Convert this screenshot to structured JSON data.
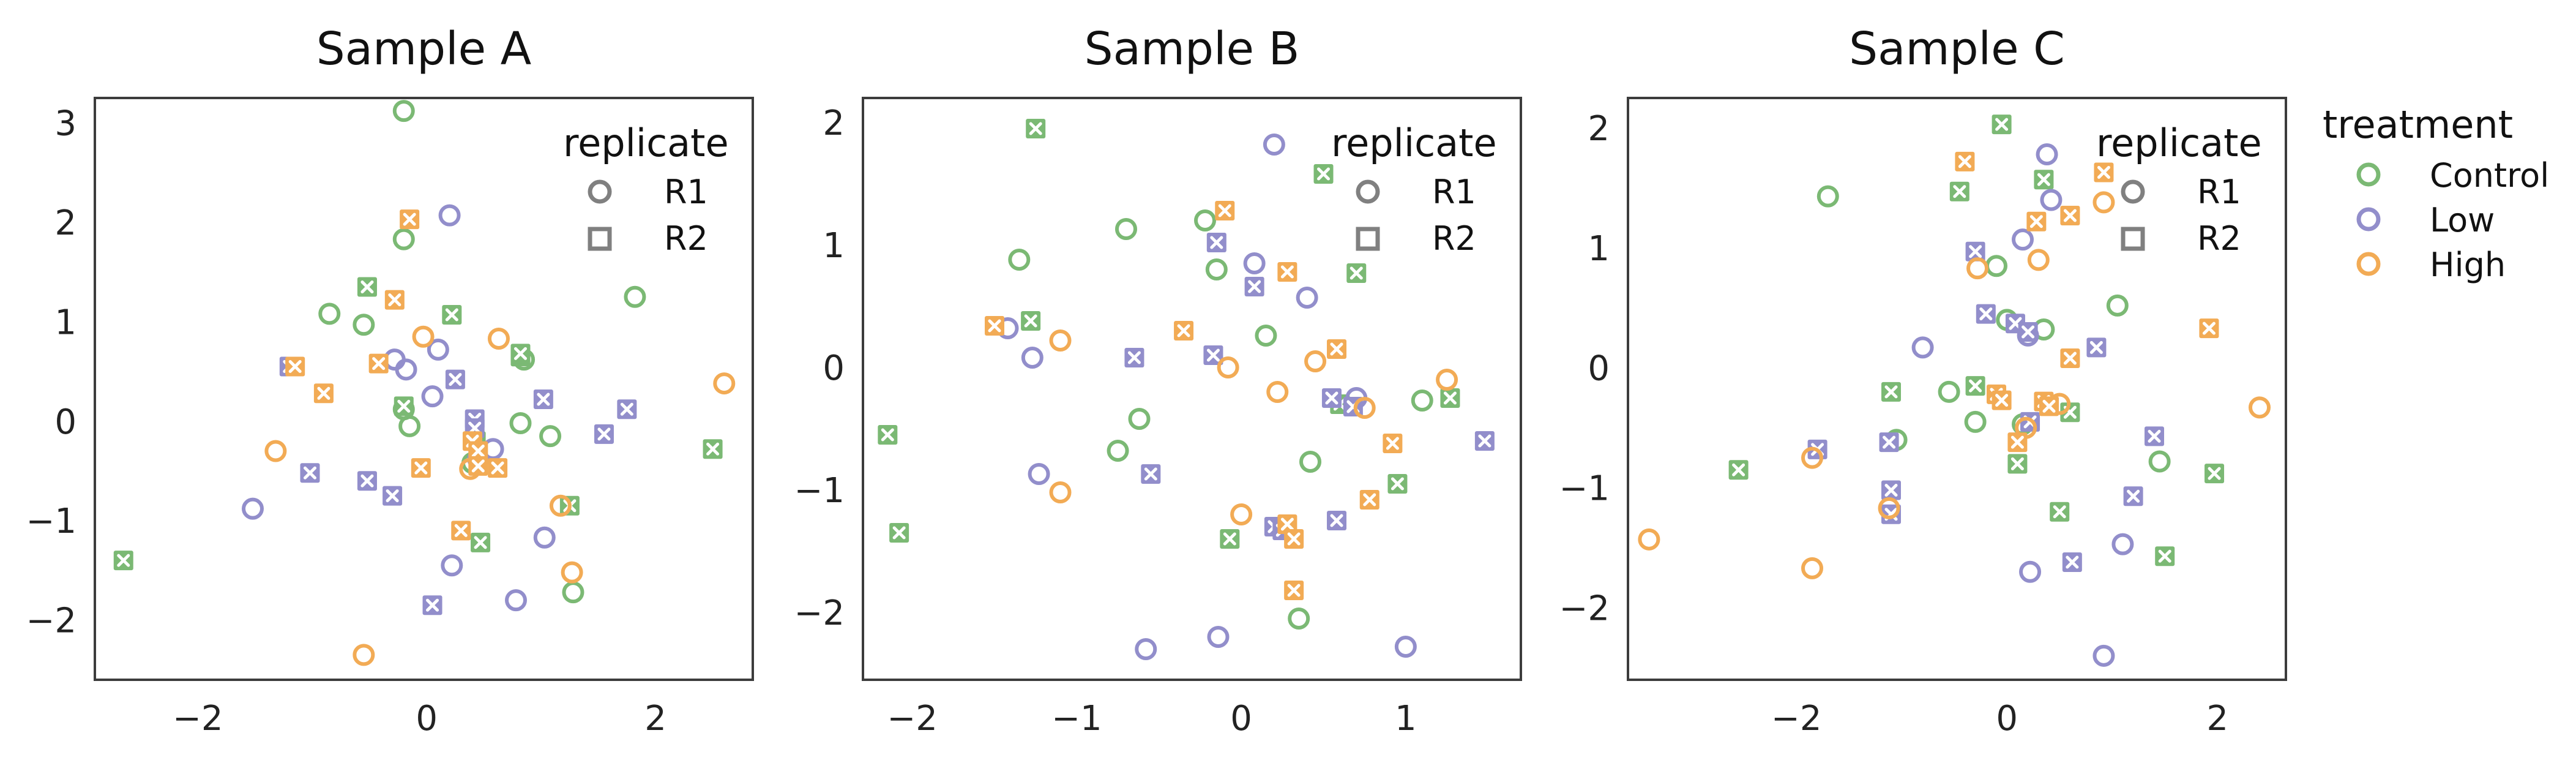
{
  "chart_data": {
    "type": "scatter",
    "colors": {
      "Control": "#7bb974",
      "Low": "#928ecb",
      "High": "#f2ab55",
      "frame": "#3c3c3c",
      "legend_marker": "#808080"
    },
    "legends": {
      "replicate": {
        "title": "replicate",
        "placement": "upper-right inside each panel",
        "entries": [
          {
            "label": "R1",
            "marker": "circle"
          },
          {
            "label": "R2",
            "marker": "square"
          }
        ]
      },
      "treatment": {
        "title": "treatment",
        "placement": "right of figure",
        "marker": "circle",
        "entries": [
          "Control",
          "Low",
          "High"
        ]
      }
    },
    "marker_encoding": {
      "circle": "open circle",
      "x_filled": "filled square with white x (R2)"
    },
    "panels": [
      {
        "title": "Sample A",
        "xlim": [
          -2.9,
          2.85
        ],
        "ylim": [
          -2.6,
          3.25
        ],
        "xticks": [
          -2,
          0,
          2
        ],
        "yticks": [
          -2,
          -1,
          0,
          1,
          2,
          3
        ],
        "xtick_labels": [
          "−2",
          "0",
          "2"
        ],
        "ytick_labels": [
          "−2",
          "−1",
          "0",
          "1",
          "2",
          "3"
        ],
        "grid": false,
        "series": [
          {
            "name": "Control",
            "marker": "circle",
            "points": [
              [
                -0.2,
                3.12
              ],
              [
                -0.2,
                1.83
              ],
              [
                -0.85,
                1.08
              ],
              [
                -0.55,
                0.97
              ],
              [
                -0.2,
                0.12
              ],
              [
                -0.15,
                -0.05
              ],
              [
                0.4,
                -0.42
              ],
              [
                0.82,
                -0.02
              ],
              [
                1.08,
                -0.15
              ],
              [
                1.28,
                -1.72
              ],
              [
                1.82,
                1.25
              ],
              [
                0.85,
                0.62
              ]
            ]
          },
          {
            "name": "Control",
            "marker": "x_filled",
            "points": [
              [
                -2.65,
                -1.4
              ],
              [
                -0.52,
                1.35
              ],
              [
                -0.2,
                0.15
              ],
              [
                0.22,
                1.07
              ],
              [
                0.82,
                0.65
              ],
              [
                0.82,
                0.68
              ],
              [
                0.43,
                -0.2
              ],
              [
                0.47,
                -1.22
              ],
              [
                1.25,
                -0.85
              ],
              [
                2.5,
                -0.28
              ]
            ]
          },
          {
            "name": "Low",
            "marker": "circle",
            "points": [
              [
                -1.52,
                -0.88
              ],
              [
                -0.28,
                0.62
              ],
              [
                -0.18,
                0.52
              ],
              [
                0.05,
                0.25
              ],
              [
                0.1,
                0.72
              ],
              [
                0.2,
                2.07
              ],
              [
                0.22,
                -1.45
              ],
              [
                0.45,
                -0.38
              ],
              [
                0.58,
                -0.28
              ],
              [
                0.78,
                -1.8
              ],
              [
                1.03,
                -1.17
              ]
            ]
          },
          {
            "name": "Low",
            "marker": "x_filled",
            "points": [
              [
                -1.2,
                0.55
              ],
              [
                -1.02,
                -0.52
              ],
              [
                -0.52,
                -0.6
              ],
              [
                -0.3,
                -0.75
              ],
              [
                0.05,
                -1.85
              ],
              [
                0.25,
                0.42
              ],
              [
                0.42,
                0.02
              ],
              [
                0.42,
                -0.07
              ],
              [
                1.02,
                0.22
              ],
              [
                1.55,
                -0.13
              ],
              [
                1.75,
                0.12
              ]
            ]
          },
          {
            "name": "High",
            "marker": "circle",
            "points": [
              [
                -1.32,
                -0.3
              ],
              [
                -0.55,
                -2.35
              ],
              [
                -0.03,
                0.85
              ],
              [
                0.38,
                -0.48
              ],
              [
                0.63,
                0.83
              ],
              [
                1.17,
                -0.85
              ],
              [
                1.27,
                -1.52
              ],
              [
                2.6,
                0.38
              ]
            ]
          },
          {
            "name": "High",
            "marker": "x_filled",
            "points": [
              [
                -1.15,
                0.55
              ],
              [
                -0.9,
                0.28
              ],
              [
                -0.42,
                0.58
              ],
              [
                -0.28,
                1.22
              ],
              [
                -0.15,
                2.03
              ],
              [
                -0.05,
                -0.47
              ],
              [
                0.3,
                -1.1
              ],
              [
                0.4,
                -0.2
              ],
              [
                0.45,
                -0.3
              ],
              [
                0.45,
                -0.45
              ],
              [
                0.62,
                -0.47
              ]
            ]
          }
        ]
      },
      {
        "title": "Sample B",
        "xlim": [
          -2.3,
          1.7
        ],
        "ylim": [
          -2.55,
          2.2
        ],
        "xticks": [
          -2,
          -1,
          0,
          1
        ],
        "yticks": [
          -2,
          -1,
          0,
          1,
          2
        ],
        "xtick_labels": [
          "−2",
          "−1",
          "0",
          "1"
        ],
        "ytick_labels": [
          "−2",
          "−1",
          "0",
          "1",
          "2"
        ],
        "grid": false,
        "series": [
          {
            "name": "Control",
            "marker": "circle",
            "points": [
              [
                -1.35,
                0.88
              ],
              [
                -0.7,
                1.13
              ],
              [
                -0.62,
                -0.42
              ],
              [
                -0.75,
                -0.68
              ],
              [
                -0.22,
                1.2
              ],
              [
                -0.15,
                0.8
              ],
              [
                0.15,
                0.26
              ],
              [
                0.35,
                -2.05
              ],
              [
                0.42,
                -0.77
              ],
              [
                1.1,
                -0.27
              ]
            ]
          },
          {
            "name": "Control",
            "marker": "x_filled",
            "points": [
              [
                -2.15,
                -0.55
              ],
              [
                -2.08,
                -1.35
              ],
              [
                -1.25,
                1.95
              ],
              [
                -1.28,
                0.38
              ],
              [
                -0.07,
                -1.4
              ],
              [
                0.5,
                1.58
              ],
              [
                0.7,
                0.77
              ],
              [
                0.6,
                -0.3
              ],
              [
                0.95,
                -0.95
              ],
              [
                1.27,
                -0.25
              ]
            ]
          },
          {
            "name": "Low",
            "marker": "circle",
            "points": [
              [
                -1.42,
                0.32
              ],
              [
                -1.27,
                0.08
              ],
              [
                -1.23,
                -0.87
              ],
              [
                -0.58,
                -2.3
              ],
              [
                -0.14,
                -2.2
              ],
              [
                0.08,
                0.85
              ],
              [
                0.2,
                1.82
              ],
              [
                0.4,
                0.57
              ],
              [
                0.7,
                -0.25
              ],
              [
                1.0,
                -2.28
              ]
            ]
          },
          {
            "name": "Low",
            "marker": "x_filled",
            "points": [
              [
                -0.65,
                0.08
              ],
              [
                -0.55,
                -0.87
              ],
              [
                -0.17,
                0.1
              ],
              [
                -0.15,
                1.02
              ],
              [
                0.08,
                0.66
              ],
              [
                0.2,
                -1.3
              ],
              [
                0.25,
                -1.33
              ],
              [
                0.55,
                -0.25
              ],
              [
                0.58,
                -1.25
              ],
              [
                0.68,
                -0.32
              ],
              [
                1.48,
                -0.6
              ]
            ]
          },
          {
            "name": "High",
            "marker": "circle",
            "points": [
              [
                -1.1,
                0.22
              ],
              [
                -1.1,
                -1.02
              ],
              [
                -0.08,
                0.0
              ],
              [
                0.0,
                -1.2
              ],
              [
                0.22,
                -0.2
              ],
              [
                0.45,
                0.05
              ],
              [
                1.25,
                -0.1
              ],
              [
                0.75,
                -0.33
              ]
            ]
          },
          {
            "name": "High",
            "marker": "x_filled",
            "points": [
              [
                -1.5,
                0.34
              ],
              [
                -0.35,
                0.3
              ],
              [
                -0.1,
                1.28
              ],
              [
                0.28,
                0.78
              ],
              [
                0.28,
                -1.28
              ],
              [
                0.32,
                -1.4
              ],
              [
                0.32,
                -1.82
              ],
              [
                0.58,
                0.15
              ],
              [
                0.78,
                -1.08
              ],
              [
                0.92,
                -0.62
              ]
            ]
          }
        ]
      },
      {
        "title": "Sample C",
        "xlim": [
          -3.6,
          2.65
        ],
        "ylim": [
          -2.6,
          2.25
        ],
        "xticks": [
          -2,
          0,
          2
        ],
        "yticks": [
          -2,
          -1,
          0,
          1,
          2
        ],
        "xtick_labels": [
          "−2",
          "0",
          "2"
        ],
        "ytick_labels": [
          "−2",
          "−1",
          "0",
          "1",
          "2"
        ],
        "grid": false,
        "series": [
          {
            "name": "Control",
            "marker": "circle",
            "points": [
              [
                -1.7,
                1.43
              ],
              [
                -1.05,
                -0.6
              ],
              [
                -0.55,
                -0.2
              ],
              [
                -0.3,
                -0.45
              ],
              [
                -0.1,
                0.85
              ],
              [
                0.0,
                0.4
              ],
              [
                0.35,
                0.32
              ],
              [
                0.15,
                -0.47
              ],
              [
                1.05,
                0.52
              ],
              [
                1.45,
                -0.78
              ]
            ]
          },
          {
            "name": "Control",
            "marker": "x_filled",
            "points": [
              [
                -2.55,
                -0.85
              ],
              [
                -1.1,
                -0.2
              ],
              [
                -0.45,
                1.47
              ],
              [
                -0.3,
                -0.15
              ],
              [
                -0.05,
                2.03
              ],
              [
                0.1,
                -0.8
              ],
              [
                0.35,
                1.57
              ],
              [
                0.5,
                -1.2
              ],
              [
                0.6,
                -0.37
              ],
              [
                1.5,
                -1.57
              ],
              [
                1.97,
                -0.88
              ]
            ]
          },
          {
            "name": "Low",
            "marker": "circle",
            "points": [
              [
                -0.8,
                0.17
              ],
              [
                0.15,
                1.07
              ],
              [
                0.2,
                0.27
              ],
              [
                0.22,
                -1.7
              ],
              [
                0.38,
                1.78
              ],
              [
                0.42,
                1.4
              ],
              [
                0.92,
                -2.4
              ],
              [
                1.1,
                -1.47
              ]
            ]
          },
          {
            "name": "Low",
            "marker": "x_filled",
            "points": [
              [
                -1.8,
                -0.68
              ],
              [
                -1.12,
                -0.62
              ],
              [
                -1.1,
                -1.02
              ],
              [
                -1.1,
                -1.22
              ],
              [
                -0.3,
                0.97
              ],
              [
                -0.2,
                0.45
              ],
              [
                0.08,
                0.37
              ],
              [
                0.2,
                0.3
              ],
              [
                0.22,
                -0.45
              ],
              [
                0.62,
                -1.62
              ],
              [
                0.85,
                0.17
              ],
              [
                1.2,
                -1.07
              ],
              [
                1.4,
                -0.57
              ]
            ]
          },
          {
            "name": "High",
            "marker": "circle",
            "points": [
              [
                -3.4,
                -1.43
              ],
              [
                -1.85,
                -0.75
              ],
              [
                -1.85,
                -1.67
              ],
              [
                -1.12,
                -1.17
              ],
              [
                -0.28,
                0.83
              ],
              [
                0.18,
                -0.5
              ],
              [
                0.3,
                0.9
              ],
              [
                0.5,
                -0.3
              ],
              [
                0.92,
                1.38
              ],
              [
                2.4,
                -0.33
              ]
            ]
          },
          {
            "name": "High",
            "marker": "x_filled",
            "points": [
              [
                -0.4,
                1.72
              ],
              [
                -0.1,
                -0.22
              ],
              [
                -0.05,
                -0.27
              ],
              [
                0.1,
                -0.62
              ],
              [
                0.28,
                1.22
              ],
              [
                0.35,
                -0.28
              ],
              [
                0.4,
                -0.32
              ],
              [
                0.6,
                1.27
              ],
              [
                0.6,
                0.08
              ],
              [
                0.92,
                1.63
              ],
              [
                1.92,
                0.33
              ]
            ]
          }
        ]
      }
    ]
  }
}
